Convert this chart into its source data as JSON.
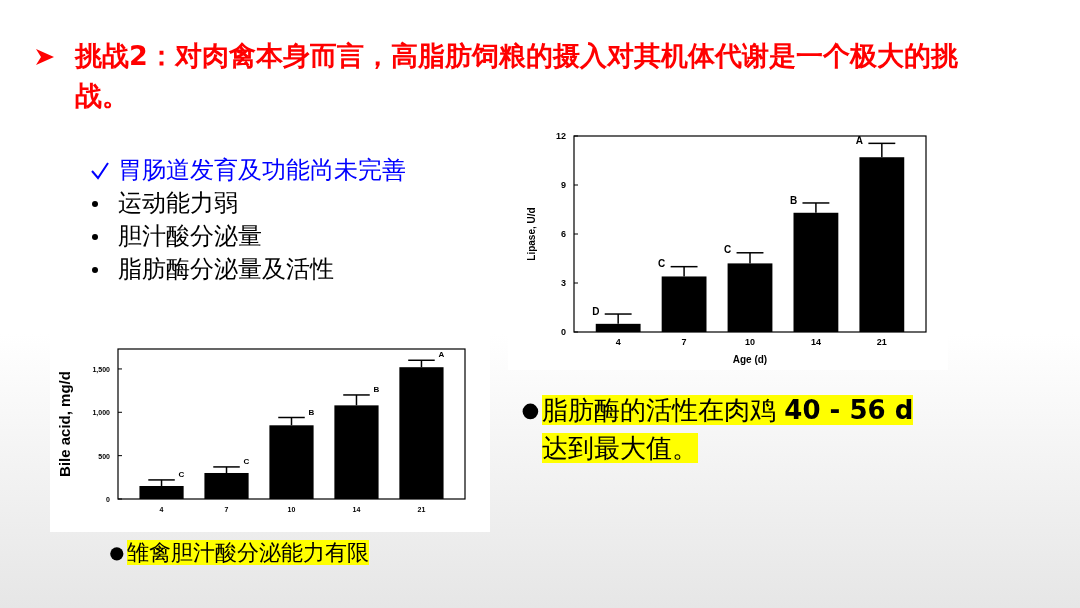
{
  "chart_data": [
    {
      "type": "other",
      "title": "挑战2：对肉禽本身而言，高脂肪饲粮的摄入对其机体代谢是一个极大的挑战。",
      "annotations": [
        "胃肠道发育及功能尚未完善",
        "运动能力弱",
        "胆汁酸分泌量",
        "脂肪酶分泌量及活性"
      ]
    },
    {
      "type": "bar",
      "categories": [
        "4",
        "7",
        "10",
        "14",
        "21"
      ],
      "values": [
        0.5,
        3.4,
        4.2,
        7.3,
        10.7
      ],
      "errors": [
        [
          0.5,
          1.1
        ],
        [
          3.4,
          4.0
        ],
        [
          4.2,
          4.85
        ],
        [
          7.3,
          7.9
        ],
        [
          10.7,
          11.55
        ]
      ],
      "color": "#000000",
      "xlabel": "Age (d)",
      "ylabel": "Lipase, U/d",
      "ylim": [
        0,
        12
      ],
      "yticks": [
        0,
        3,
        6,
        9,
        12
      ],
      "annotations": [
        {
          "text": "D",
          "x": "4",
          "y": 1.1
        },
        {
          "text": "C",
          "x": "7",
          "y": 4.0
        },
        {
          "text": "C",
          "x": "10",
          "y": 4.85
        },
        {
          "text": "B",
          "x": "14",
          "y": 7.9
        },
        {
          "text": "A",
          "x": "21",
          "y": 11.55
        },
        "脂肪酶的活性在肉鸡 **40 - 56 d** 达到最大值。"
      ]
    },
    {
      "type": "bar",
      "categories": [
        "4",
        "7",
        "10",
        "14",
        "21"
      ],
      "values": [
        150,
        300,
        850,
        1080,
        1520
      ],
      "errors": [
        [
          150,
          220
        ],
        [
          300,
          370
        ],
        [
          850,
          940
        ],
        [
          1080,
          1200
        ],
        [
          1520,
          1600
        ]
      ],
      "color": "#000000",
      "ylabel": "Bile acid, mg/d",
      "ylim": [
        0,
        1730
      ],
      "yticks": [
        0,
        500,
        {
          "value": 1000,
          "label": "1,000"
        },
        {
          "value": 1500,
          "label": "1,500"
        }
      ],
      "annotations": [
        {
          "text": "C",
          "x": "4",
          "y": 220
        },
        {
          "text": "C",
          "x": "7",
          "y": 370
        },
        {
          "text": "B",
          "x": "10",
          "y": 940
        },
        {
          "text": "B",
          "x": "14",
          "y": 1200
        },
        {
          "text": "A",
          "x": "21",
          "y": 1600
        },
        "雏禽胆汁酸分泌能力有限"
      ]
    }
  ]
}
